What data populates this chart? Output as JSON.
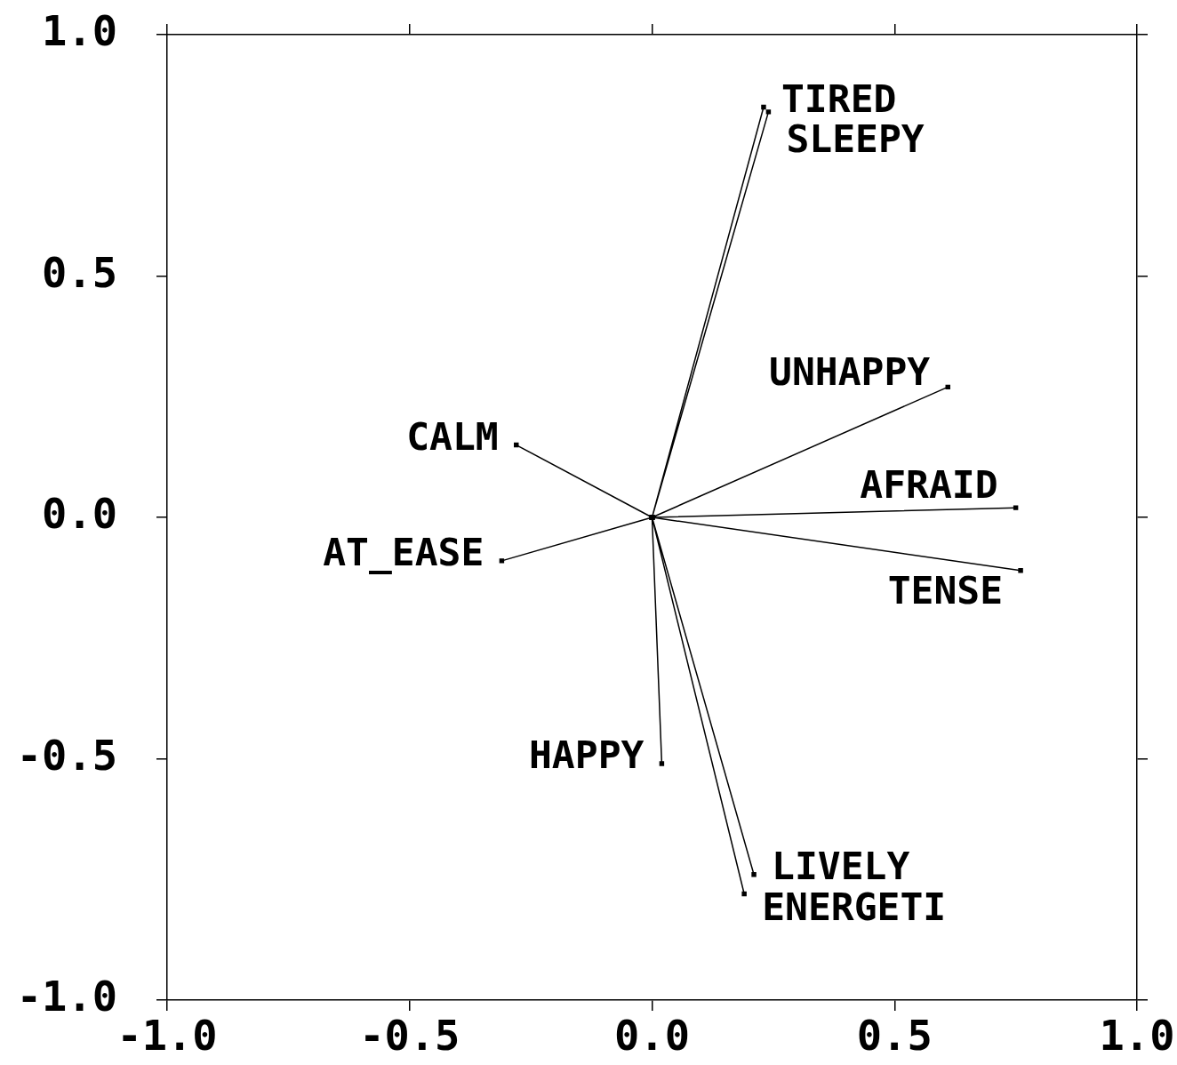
{
  "chart_data": {
    "type": "line",
    "legend": false,
    "marker": "square",
    "line_style": "solid",
    "xlim": [
      -1,
      1
    ],
    "ylim": [
      -1,
      1
    ],
    "xticks": [
      {
        "value": -1,
        "label": "-1.0"
      },
      {
        "value": -0.5,
        "label": "-0.5"
      },
      {
        "value": 0,
        "label": "0.0"
      },
      {
        "value": 0.5,
        "label": "0.5"
      },
      {
        "value": 1,
        "label": "1.0"
      }
    ],
    "yticks": [
      {
        "value": -1,
        "label": "-1.0"
      },
      {
        "value": -0.5,
        "label": "-0.5"
      },
      {
        "value": 0,
        "label": "0.0"
      },
      {
        "value": 0.5,
        "label": "0.5"
      },
      {
        "value": 1,
        "label": "1.0"
      }
    ],
    "series": [
      {
        "color": "#000000",
        "x": [
          0,
          0.23,
          0,
          0.24,
          0,
          0.61,
          0,
          -0.28,
          0,
          0.75,
          0,
          -0.31,
          0,
          0.76,
          0,
          0.02,
          0,
          0.21,
          0,
          0.19
        ],
        "values": [
          0,
          0.85,
          0,
          0.84,
          0,
          0.27,
          0,
          0.15,
          0,
          0.02,
          0,
          -0.09,
          0,
          -0.11,
          0,
          -0.51,
          0,
          -0.74,
          0,
          -0.78
        ]
      }
    ],
    "annotations": [
      {
        "text": "TIRED",
        "x": 0.23,
        "y": 0.85
      },
      {
        "text": "SLEEPY",
        "x": 0.24,
        "y": 0.84
      },
      {
        "text": "UNHAPPY",
        "x": 0.61,
        "y": 0.27
      },
      {
        "text": "CALM",
        "x": -0.28,
        "y": 0.15
      },
      {
        "text": "AFRAID",
        "x": 0.75,
        "y": 0.02
      },
      {
        "text": "AT_EASE",
        "x": -0.31,
        "y": -0.09
      },
      {
        "text": "TENSE",
        "x": 0.76,
        "y": -0.11
      },
      {
        "text": "HAPPY",
        "x": 0.02,
        "y": -0.51
      },
      {
        "text": "LIVELY",
        "x": 0.21,
        "y": -0.74
      },
      {
        "text": "ENERGETI",
        "x": 0.19,
        "y": -0.78
      }
    ]
  }
}
